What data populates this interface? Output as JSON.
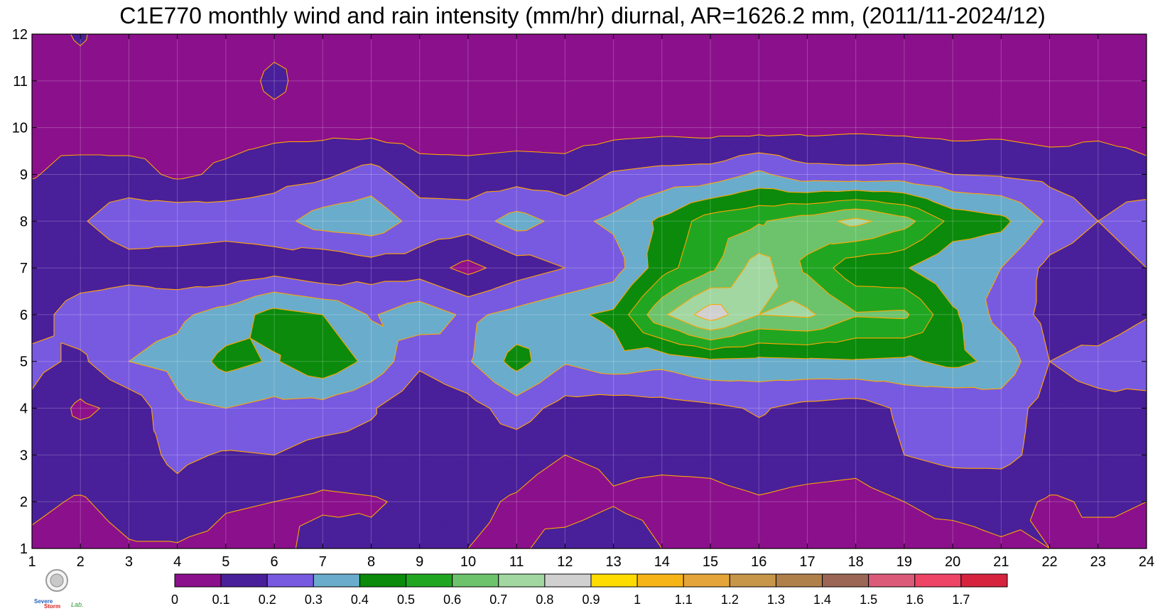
{
  "chart_data": {
    "type": "heatmap",
    "title": "C1E770 monthly wind and rain intensity (mm/hr) diurnal, AR=1626.2 mm, (2011/11-2024/12)",
    "xlabel": "",
    "ylabel": "",
    "xlim": [
      1,
      24
    ],
    "ylim": [
      1,
      12
    ],
    "x_ticks": [
      "1",
      "2",
      "3",
      "4",
      "5",
      "6",
      "7",
      "8",
      "9",
      "10",
      "11",
      "12",
      "13",
      "14",
      "15",
      "16",
      "17",
      "18",
      "19",
      "20",
      "21",
      "22",
      "23",
      "24"
    ],
    "y_ticks": [
      "1",
      "2",
      "3",
      "4",
      "5",
      "6",
      "7",
      "8",
      "9",
      "10",
      "11",
      "12"
    ],
    "grid": true,
    "x": [
      1,
      2,
      3,
      4,
      5,
      6,
      7,
      8,
      9,
      10,
      11,
      12,
      13,
      14,
      15,
      16,
      17,
      18,
      19,
      20,
      21,
      22,
      23,
      24
    ],
    "y": [
      1,
      2,
      3,
      4,
      5,
      6,
      7,
      8,
      9,
      10,
      11,
      12
    ],
    "z": [
      [
        0.08,
        0.05,
        0.09,
        0.09,
        0.07,
        0.06,
        0.15,
        0.12,
        0.15,
        0.1,
        0.08,
        0.15,
        0.19,
        0.1,
        0.1,
        0.1,
        0.08,
        0.08,
        0.08,
        0.07,
        0.09,
        0.1,
        0.08,
        0.09
      ],
      [
        0.12,
        0.09,
        0.14,
        0.17,
        0.11,
        0.1,
        0.08,
        0.09,
        0.12,
        0.12,
        0.09,
        0.04,
        0.09,
        0.06,
        0.07,
        0.09,
        0.07,
        0.06,
        0.1,
        0.12,
        0.13,
        0.09,
        0.11,
        0.1
      ],
      [
        0.14,
        0.16,
        0.16,
        0.22,
        0.19,
        0.2,
        0.16,
        0.17,
        0.17,
        0.15,
        0.14,
        0.1,
        0.12,
        0.13,
        0.13,
        0.16,
        0.15,
        0.14,
        0.2,
        0.23,
        0.23,
        0.16,
        0.14,
        0.18
      ],
      [
        0.18,
        0.08,
        0.13,
        0.28,
        0.3,
        0.27,
        0.26,
        0.21,
        0.12,
        0.16,
        0.25,
        0.16,
        0.14,
        0.16,
        0.18,
        0.21,
        0.17,
        0.15,
        0.22,
        0.2,
        0.25,
        0.16,
        0.17,
        0.14
      ],
      [
        0.23,
        0.18,
        0.3,
        0.33,
        0.43,
        0.39,
        0.48,
        0.37,
        0.22,
        0.29,
        0.44,
        0.31,
        0.36,
        0.33,
        0.38,
        0.37,
        0.38,
        0.39,
        0.38,
        0.43,
        0.37,
        0.2,
        0.24,
        0.3
      ],
      [
        0.15,
        0.26,
        0.27,
        0.28,
        0.34,
        0.44,
        0.4,
        0.29,
        0.36,
        0.28,
        0.33,
        0.38,
        0.42,
        0.68,
        0.86,
        0.7,
        0.72,
        0.61,
        0.62,
        0.42,
        0.26,
        0.17,
        0.12,
        0.19
      ],
      [
        0.1,
        0.13,
        0.16,
        0.13,
        0.12,
        0.15,
        0.1,
        0.15,
        0.15,
        0.07,
        0.15,
        0.2,
        0.25,
        0.46,
        0.58,
        0.75,
        0.58,
        0.43,
        0.41,
        0.31,
        0.3,
        0.17,
        0.13,
        0.2
      ],
      [
        0.19,
        0.19,
        0.26,
        0.28,
        0.26,
        0.26,
        0.35,
        0.37,
        0.26,
        0.25,
        0.34,
        0.27,
        0.32,
        0.42,
        0.55,
        0.59,
        0.65,
        0.73,
        0.64,
        0.47,
        0.43,
        0.28,
        0.2,
        0.27
      ],
      [
        0.09,
        0.15,
        0.14,
        0.08,
        0.12,
        0.16,
        0.18,
        0.24,
        0.14,
        0.14,
        0.15,
        0.14,
        0.21,
        0.23,
        0.24,
        0.32,
        0.24,
        0.23,
        0.24,
        0.2,
        0.19,
        0.17,
        0.15,
        0.12
      ],
      [
        0.08,
        0.03,
        0.04,
        0.06,
        0.06,
        0.07,
        0.07,
        0.06,
        0.05,
        0.04,
        0.05,
        0.05,
        0.06,
        0.07,
        0.06,
        0.06,
        0.07,
        0.08,
        0.07,
        0.06,
        0.07,
        0.05,
        0.08,
        0.07
      ],
      [
        0.05,
        0.07,
        0.06,
        0.06,
        0.05,
        0.12,
        0.05,
        0.06,
        0.04,
        0.03,
        0.05,
        0.04,
        0.04,
        0.06,
        0.06,
        0.06,
        0.04,
        0.04,
        0.04,
        0.05,
        0.05,
        0.06,
        0.06,
        0.04
      ],
      [
        0.06,
        0.11,
        0.04,
        0.06,
        0.05,
        0.07,
        0.08,
        0.06,
        0.05,
        0.04,
        0.06,
        0.05,
        0.05,
        0.05,
        0.05,
        0.06,
        0.04,
        0.05,
        0.06,
        0.05,
        0.04,
        0.06,
        0.03,
        0.05
      ]
    ],
    "levels": [
      "0",
      "0.1",
      "0.2",
      "0.3",
      "0.4",
      "0.5",
      "0.6",
      "0.7",
      "0.8",
      "0.9",
      "1",
      "1.1",
      "1.2",
      "1.3",
      "1.4",
      "1.5",
      "1.6",
      "1.7"
    ],
    "level_values": [
      0,
      0.1,
      0.2,
      0.3,
      0.4,
      0.5,
      0.6,
      0.7,
      0.8,
      0.9,
      1.0,
      1.1,
      1.2,
      1.3,
      1.4,
      1.5,
      1.6,
      1.7
    ],
    "colors": [
      "#8b108c",
      "#4a1f9a",
      "#785ae0",
      "#6aaccc",
      "#0b8a0c",
      "#21a622",
      "#6cc36c",
      "#a2d7a2",
      "#d0d0d0",
      "#ffdc00",
      "#f7b417",
      "#e5a43a",
      "#c79649",
      "#b0804a",
      "#9b6655",
      "#db5a7a",
      "#ee4466",
      "#d6243e"
    ],
    "contour_color": "#ffa500",
    "legend_position": "bottom"
  },
  "logo": {
    "line1": "Severe",
    "line2": "Storm",
    "line3": "Lab."
  }
}
